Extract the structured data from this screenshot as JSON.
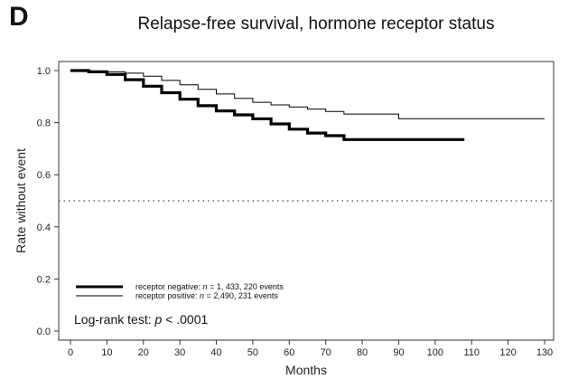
{
  "panel_label": "D",
  "chart_data": {
    "type": "line",
    "title": "Relapse-free survival, hormone receptor status",
    "xlabel": "Months",
    "ylabel": "Rate without event",
    "xlim": [
      0,
      130
    ],
    "ylim": [
      0.0,
      1.0
    ],
    "x_ticks": [
      0,
      10,
      20,
      30,
      40,
      50,
      60,
      70,
      80,
      90,
      100,
      110,
      120,
      130
    ],
    "y_ticks": [
      "0.0",
      "0.2",
      "0.4",
      "0.6",
      "0.8",
      "1.0"
    ],
    "reference_line": {
      "y": 0.5,
      "style": "dotted"
    },
    "legend_position": "bottom-left",
    "series": [
      {
        "name": "receptor negative",
        "legend_pre": "receptor negative: ",
        "legend_n": "n",
        "legend_post": " = 1, 433, 220 events",
        "color": "#000000",
        "x": [
          0,
          5,
          10,
          15,
          20,
          25,
          30,
          35,
          40,
          45,
          50,
          55,
          60,
          65,
          70,
          75,
          80,
          85,
          90,
          95,
          100,
          108
        ],
        "y": [
          1.0,
          0.995,
          0.985,
          0.965,
          0.94,
          0.915,
          0.89,
          0.865,
          0.845,
          0.83,
          0.815,
          0.795,
          0.775,
          0.76,
          0.75,
          0.735,
          0.735,
          0.735,
          0.735,
          0.735,
          0.735,
          0.735
        ]
      },
      {
        "name": "receptor positive",
        "legend_pre": "receptor positive: ",
        "legend_n": "n",
        "legend_post": " = 2,490, 231 events",
        "color": "#000000",
        "x": [
          0,
          5,
          10,
          15,
          20,
          25,
          30,
          35,
          40,
          45,
          50,
          55,
          60,
          65,
          70,
          75,
          80,
          85,
          90,
          95,
          100,
          110,
          120,
          130
        ],
        "y": [
          1.0,
          0.998,
          0.995,
          0.99,
          0.978,
          0.962,
          0.945,
          0.928,
          0.91,
          0.893,
          0.878,
          0.868,
          0.86,
          0.852,
          0.843,
          0.833,
          0.833,
          0.833,
          0.815,
          0.815,
          0.815,
          0.815,
          0.815,
          0.815
        ]
      }
    ],
    "annotation": {
      "prefix": "Log-rank test: ",
      "p": "p",
      "suffix": " < .0001"
    }
  }
}
